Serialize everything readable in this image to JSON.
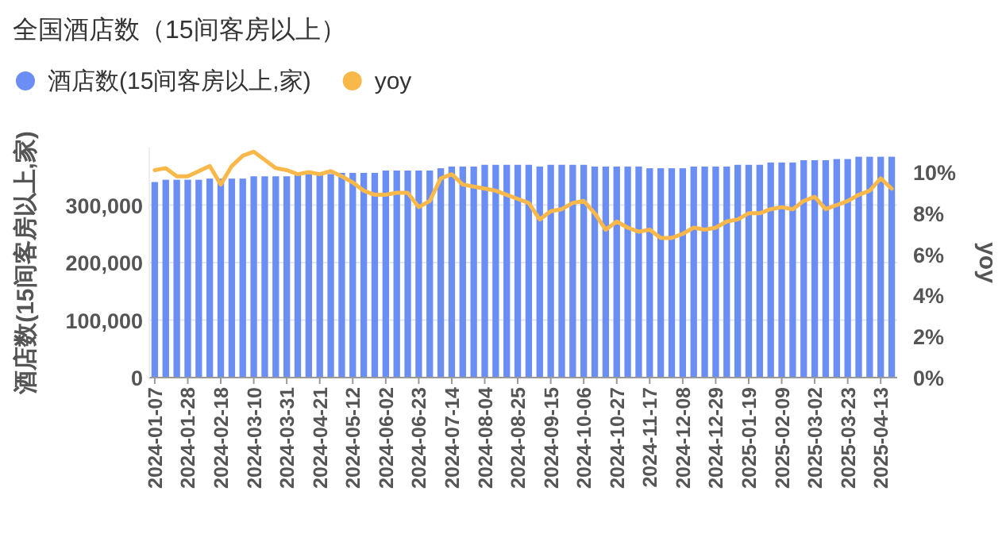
{
  "chart_data": {
    "type": "bar",
    "title": "全国酒店数（15间客房以上）",
    "categories": [
      "2024-01-07",
      null,
      null,
      "2024-01-28",
      null,
      null,
      "2024-02-18",
      null,
      null,
      "2024-03-10",
      null,
      null,
      "2024-03-31",
      null,
      null,
      "2024-04-21",
      null,
      null,
      "2024-05-12",
      null,
      null,
      "2024-06-02",
      null,
      null,
      "2024-06-23",
      null,
      null,
      "2024-07-14",
      null,
      null,
      "2024-08-04",
      null,
      null,
      "2024-08-25",
      null,
      null,
      "2024-09-15",
      null,
      null,
      "2024-10-06",
      null,
      null,
      "2024-10-27",
      null,
      null,
      "2024-11-17",
      null,
      null,
      "2024-12-08",
      null,
      null,
      "2024-12-29",
      null,
      null,
      "2025-01-19",
      null,
      null,
      "2025-02-09",
      null,
      null,
      "2025-03-02",
      null,
      null,
      "2025-03-23",
      null,
      null,
      "2025-04-13",
      null
    ],
    "series": [
      {
        "name": "酒店数(15间客房以上,家)",
        "color": "#6b8ef4",
        "values": [
          340000,
          344000,
          344000,
          344000,
          344000,
          346000,
          346000,
          346000,
          346000,
          350000,
          350000,
          350000,
          350000,
          354000,
          354000,
          354000,
          354000,
          356000,
          356000,
          356000,
          356000,
          360000,
          360000,
          360000,
          360000,
          360000,
          364000,
          367000,
          367000,
          367000,
          370000,
          370000,
          370000,
          370000,
          370000,
          367000,
          370000,
          370000,
          370000,
          370000,
          367000,
          367000,
          367000,
          367000,
          367000,
          364000,
          364000,
          364000,
          364000,
          367000,
          367000,
          367000,
          367000,
          370000,
          370000,
          370000,
          374000,
          374000,
          374000,
          378000,
          378000,
          378000,
          380000,
          380000,
          384000,
          384000,
          384000,
          384000
        ]
      },
      {
        "name": "yoy",
        "type": "line",
        "axis": "y2",
        "color": "#f9b84a",
        "values": [
          10.1,
          10.2,
          9.8,
          9.8,
          10.05,
          10.3,
          9.4,
          10.3,
          10.8,
          11.0,
          10.6,
          10.2,
          10.1,
          9.9,
          10.0,
          9.9,
          10.05,
          9.8,
          9.5,
          9.1,
          8.9,
          8.9,
          9.0,
          9.0,
          8.3,
          8.6,
          9.7,
          9.9,
          9.4,
          9.3,
          9.2,
          9.1,
          8.9,
          8.7,
          8.5,
          7.7,
          8.1,
          8.2,
          8.5,
          8.6,
          8.0,
          7.2,
          7.6,
          7.3,
          7.1,
          7.2,
          6.8,
          6.8,
          7.0,
          7.3,
          7.2,
          7.3,
          7.6,
          7.7,
          8.0,
          8.0,
          8.2,
          8.3,
          8.2,
          8.6,
          8.8,
          8.2,
          8.4,
          8.6,
          8.9,
          9.1,
          9.7,
          9.2
        ]
      }
    ],
    "ylabel": "酒店数(15间客房以上,家)",
    "y2label": "yoy",
    "ylim": [
      0,
      400000
    ],
    "yticks": [
      {
        "value": 0,
        "label": "0"
      },
      {
        "value": 100000,
        "label": "100,000"
      },
      {
        "value": 200000,
        "label": "200,000"
      },
      {
        "value": 300000,
        "label": "300,000"
      }
    ],
    "y2lim": [
      0,
      11.2
    ],
    "y2ticks": [
      {
        "value": 0,
        "label": "0%"
      },
      {
        "value": 2,
        "label": "2%"
      },
      {
        "value": 4,
        "label": "4%"
      },
      {
        "value": 6,
        "label": "6%"
      },
      {
        "value": 8,
        "label": "8%"
      },
      {
        "value": 10,
        "label": "10%"
      }
    ],
    "grid": "y",
    "legend": "top left",
    "marker": "none",
    "line_style": "solid"
  }
}
